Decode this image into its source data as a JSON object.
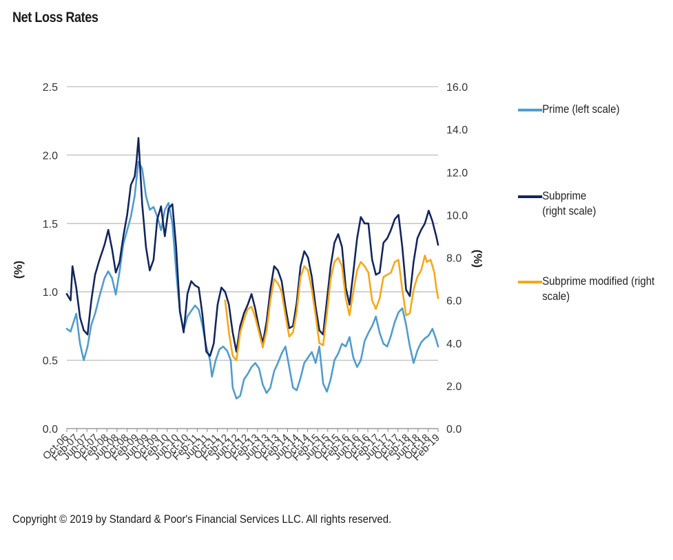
{
  "page": {
    "title": "Net Loss Rates",
    "copyright": "Copyright © 2019 by Standard & Poor's Financial Services LLC. All rights reserved."
  },
  "colors": {
    "prime": "#4f9ccd",
    "subprime": "#13255e",
    "subprime_modified": "#f5a816",
    "grid": "#bdbdbd",
    "axis": "#888888"
  },
  "chart_data": {
    "type": "line",
    "title": "Net Loss Rates",
    "ylabel_left": "(%)",
    "ylabel_right": "(%)",
    "ylim_left": [
      0,
      2.5
    ],
    "ylim_right": [
      0,
      16
    ],
    "yticks_left": [
      "0.0",
      "0.5",
      "1.0",
      "1.5",
      "2.0",
      "2.5"
    ],
    "yticks_right": [
      "0.0",
      "2.0",
      "4.0",
      "6.0",
      "8.0",
      "10.0",
      "12.0",
      "14.0",
      "16.0"
    ],
    "grid": true,
    "legend_position": "right",
    "x_start": "Oct-06",
    "x_end": "Feb-19",
    "xtick_labels": [
      "Oct-06",
      "Feb-07",
      "Jun-07",
      "Oct-07",
      "Feb-08",
      "Jun-08",
      "Oct-08",
      "Feb-09",
      "Jun-09",
      "Oct-09",
      "Feb-10",
      "Jun-10",
      "Oct-10",
      "Feb-11",
      "Jun-11",
      "Oct-11",
      "Feb-12",
      "Jun-12",
      "Oct-12",
      "Feb-13",
      "Jun-13",
      "Oct-13",
      "Feb-14",
      "Jun-14",
      "Oct-14",
      "Feb-15",
      "Jun-15",
      "Oct-15",
      "Feb-16",
      "Jun-16",
      "Oct-16",
      "Feb-17",
      "Jun-17",
      "Oct-17",
      "Feb-18",
      "Jun-18",
      "Oct-18",
      "Feb-19"
    ],
    "series": [
      {
        "name": "Prime (left scale)",
        "axis": "left",
        "color_key": "prime",
        "anchors": [
          [
            0,
            0.73
          ],
          [
            2,
            0.71
          ],
          [
            5,
            0.84
          ],
          [
            7,
            0.62
          ],
          [
            9,
            0.5
          ],
          [
            11,
            0.6
          ],
          [
            13,
            0.76
          ],
          [
            15,
            0.84
          ],
          [
            17,
            0.95
          ],
          [
            20,
            1.1
          ],
          [
            22,
            1.15
          ],
          [
            24,
            1.1
          ],
          [
            26,
            0.98
          ],
          [
            28,
            1.15
          ],
          [
            30,
            1.35
          ],
          [
            32,
            1.45
          ],
          [
            34,
            1.55
          ],
          [
            36,
            1.7
          ],
          [
            38,
            1.95
          ],
          [
            40,
            1.9
          ],
          [
            42,
            1.7
          ],
          [
            44,
            1.6
          ],
          [
            46,
            1.62
          ],
          [
            48,
            1.55
          ],
          [
            50,
            1.45
          ],
          [
            52,
            1.6
          ],
          [
            54,
            1.65
          ],
          [
            56,
            1.5
          ],
          [
            58,
            1.15
          ],
          [
            60,
            0.85
          ],
          [
            62,
            0.72
          ],
          [
            64,
            0.82
          ],
          [
            66,
            0.86
          ],
          [
            68,
            0.9
          ],
          [
            70,
            0.87
          ],
          [
            72,
            0.75
          ],
          [
            74,
            0.6
          ],
          [
            76,
            0.5
          ],
          [
            77,
            0.38
          ],
          [
            79,
            0.5
          ],
          [
            81,
            0.58
          ],
          [
            83,
            0.6
          ],
          [
            85,
            0.57
          ],
          [
            87,
            0.5
          ],
          [
            88,
            0.3
          ],
          [
            90,
            0.22
          ],
          [
            92,
            0.24
          ],
          [
            94,
            0.36
          ],
          [
            96,
            0.4
          ],
          [
            98,
            0.45
          ],
          [
            100,
            0.48
          ],
          [
            102,
            0.44
          ],
          [
            104,
            0.32
          ],
          [
            106,
            0.26
          ],
          [
            108,
            0.3
          ],
          [
            110,
            0.42
          ],
          [
            112,
            0.48
          ],
          [
            114,
            0.55
          ],
          [
            116,
            0.6
          ],
          [
            118,
            0.45
          ],
          [
            120,
            0.3
          ],
          [
            122,
            0.28
          ],
          [
            124,
            0.37
          ],
          [
            126,
            0.48
          ],
          [
            128,
            0.52
          ],
          [
            130,
            0.56
          ],
          [
            132,
            0.48
          ],
          [
            134,
            0.6
          ],
          [
            136,
            0.33
          ],
          [
            138,
            0.27
          ],
          [
            140,
            0.36
          ],
          [
            142,
            0.5
          ],
          [
            144,
            0.55
          ],
          [
            146,
            0.62
          ],
          [
            148,
            0.6
          ],
          [
            150,
            0.67
          ],
          [
            152,
            0.52
          ],
          [
            154,
            0.45
          ],
          [
            156,
            0.5
          ],
          [
            158,
            0.64
          ],
          [
            160,
            0.7
          ],
          [
            162,
            0.75
          ],
          [
            164,
            0.82
          ],
          [
            166,
            0.7
          ],
          [
            168,
            0.62
          ],
          [
            170,
            0.6
          ],
          [
            172,
            0.68
          ],
          [
            174,
            0.78
          ],
          [
            176,
            0.85
          ],
          [
            178,
            0.88
          ],
          [
            180,
            0.76
          ],
          [
            182,
            0.6
          ],
          [
            184,
            0.48
          ],
          [
            186,
            0.57
          ],
          [
            188,
            0.63
          ],
          [
            190,
            0.66
          ],
          [
            192,
            0.68
          ],
          [
            194,
            0.73
          ],
          [
            196,
            0.65
          ],
          [
            197,
            0.6
          ]
        ]
      },
      {
        "name": "Subprime (right scale)",
        "axis": "right",
        "color_key": "subprime",
        "anchors": [
          [
            0,
            6.3
          ],
          [
            2,
            6.0
          ],
          [
            3,
            7.6
          ],
          [
            5,
            6.6
          ],
          [
            7,
            5.2
          ],
          [
            9,
            4.6
          ],
          [
            11,
            4.4
          ],
          [
            13,
            6.0
          ],
          [
            15,
            7.2
          ],
          [
            17,
            7.8
          ],
          [
            20,
            8.6
          ],
          [
            22,
            9.3
          ],
          [
            24,
            8.4
          ],
          [
            26,
            7.3
          ],
          [
            28,
            7.8
          ],
          [
            30,
            9.0
          ],
          [
            32,
            10.0
          ],
          [
            34,
            11.4
          ],
          [
            36,
            11.8
          ],
          [
            37,
            12.5
          ],
          [
            38,
            13.6
          ],
          [
            40,
            10.5
          ],
          [
            42,
            8.5
          ],
          [
            44,
            7.4
          ],
          [
            46,
            7.9
          ],
          [
            48,
            9.8
          ],
          [
            50,
            10.4
          ],
          [
            52,
            9.0
          ],
          [
            54,
            10.3
          ],
          [
            56,
            10.5
          ],
          [
            58,
            8.5
          ],
          [
            60,
            5.5
          ],
          [
            62,
            4.5
          ],
          [
            64,
            6.3
          ],
          [
            66,
            6.9
          ],
          [
            68,
            6.7
          ],
          [
            70,
            6.6
          ],
          [
            72,
            5.3
          ],
          [
            74,
            3.6
          ],
          [
            76,
            3.4
          ],
          [
            78,
            4.0
          ],
          [
            80,
            5.8
          ],
          [
            82,
            6.6
          ],
          [
            84,
            6.4
          ],
          [
            86,
            5.8
          ],
          [
            88,
            4.5
          ],
          [
            90,
            3.6
          ],
          [
            92,
            4.8
          ],
          [
            94,
            5.4
          ],
          [
            96,
            5.8
          ],
          [
            98,
            6.3
          ],
          [
            100,
            5.6
          ],
          [
            102,
            4.7
          ],
          [
            104,
            4.0
          ],
          [
            106,
            5.0
          ],
          [
            108,
            6.5
          ],
          [
            110,
            7.6
          ],
          [
            112,
            7.4
          ],
          [
            114,
            6.9
          ],
          [
            116,
            5.7
          ],
          [
            118,
            4.7
          ],
          [
            120,
            4.8
          ],
          [
            122,
            5.9
          ],
          [
            124,
            7.6
          ],
          [
            126,
            8.3
          ],
          [
            128,
            8.0
          ],
          [
            130,
            7.1
          ],
          [
            132,
            5.7
          ],
          [
            134,
            4.6
          ],
          [
            136,
            4.4
          ],
          [
            138,
            6.0
          ],
          [
            140,
            7.6
          ],
          [
            142,
            8.7
          ],
          [
            144,
            9.1
          ],
          [
            146,
            8.5
          ],
          [
            148,
            6.6
          ],
          [
            150,
            5.8
          ],
          [
            152,
            7.3
          ],
          [
            154,
            8.9
          ],
          [
            156,
            9.9
          ],
          [
            158,
            9.6
          ],
          [
            160,
            9.6
          ],
          [
            162,
            7.9
          ],
          [
            164,
            7.2
          ],
          [
            166,
            7.3
          ],
          [
            168,
            8.7
          ],
          [
            170,
            8.9
          ],
          [
            172,
            9.3
          ],
          [
            174,
            9.8
          ],
          [
            176,
            10.0
          ],
          [
            178,
            8.5
          ],
          [
            180,
            6.5
          ],
          [
            182,
            6.2
          ],
          [
            184,
            7.8
          ],
          [
            186,
            8.9
          ],
          [
            188,
            9.3
          ],
          [
            190,
            9.6
          ],
          [
            192,
            10.2
          ],
          [
            194,
            9.7
          ],
          [
            196,
            9.0
          ],
          [
            197,
            8.6
          ]
        ]
      },
      {
        "name": "Subprime modified (right scale)",
        "axis": "right",
        "color_key": "subprime_modified",
        "anchors": [
          [
            84,
            6.0
          ],
          [
            86,
            4.5
          ],
          [
            88,
            3.4
          ],
          [
            90,
            3.2
          ],
          [
            92,
            4.5
          ],
          [
            94,
            5.1
          ],
          [
            96,
            5.6
          ],
          [
            98,
            5.7
          ],
          [
            100,
            5.2
          ],
          [
            102,
            4.5
          ],
          [
            104,
            3.8
          ],
          [
            106,
            4.6
          ],
          [
            108,
            6.0
          ],
          [
            110,
            7.0
          ],
          [
            112,
            6.8
          ],
          [
            114,
            6.4
          ],
          [
            116,
            5.3
          ],
          [
            118,
            4.3
          ],
          [
            120,
            4.5
          ],
          [
            122,
            5.5
          ],
          [
            124,
            7.1
          ],
          [
            126,
            7.6
          ],
          [
            128,
            7.4
          ],
          [
            130,
            6.5
          ],
          [
            132,
            5.3
          ],
          [
            134,
            4.0
          ],
          [
            136,
            3.9
          ],
          [
            138,
            5.4
          ],
          [
            140,
            7.0
          ],
          [
            142,
            7.8
          ],
          [
            144,
            8.0
          ],
          [
            146,
            7.6
          ],
          [
            148,
            6.1
          ],
          [
            150,
            5.3
          ],
          [
            152,
            6.4
          ],
          [
            154,
            7.4
          ],
          [
            156,
            7.8
          ],
          [
            158,
            7.6
          ],
          [
            160,
            7.3
          ],
          [
            162,
            6.0
          ],
          [
            164,
            5.6
          ],
          [
            166,
            6.1
          ],
          [
            168,
            7.1
          ],
          [
            170,
            7.2
          ],
          [
            172,
            7.3
          ],
          [
            174,
            7.8
          ],
          [
            176,
            7.9
          ],
          [
            178,
            6.5
          ],
          [
            180,
            5.3
          ],
          [
            182,
            5.4
          ],
          [
            184,
            6.5
          ],
          [
            186,
            7.1
          ],
          [
            188,
            7.4
          ],
          [
            190,
            8.1
          ],
          [
            191,
            7.8
          ],
          [
            193,
            7.9
          ],
          [
            195,
            7.3
          ],
          [
            196,
            6.6
          ],
          [
            197,
            6.1
          ]
        ]
      }
    ]
  },
  "legend": {
    "items": [
      {
        "label": "Prime (left scale)",
        "color_key": "prime"
      },
      {
        "label": "Subprime (right scale)",
        "color_key": "subprime"
      },
      {
        "label": "Subprime modified (right scale)",
        "color_key": "subprime_modified"
      }
    ]
  }
}
